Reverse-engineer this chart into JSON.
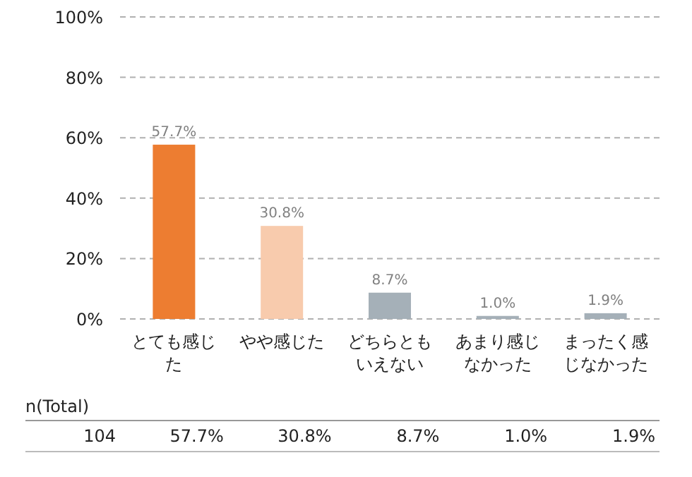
{
  "chart_data": {
    "type": "bar",
    "categories": [
      "とても感じた",
      "やや感じた",
      "どちらともいえない",
      "あまり感じなかった",
      "まったく感じなかった"
    ],
    "values": [
      57.7,
      30.8,
      8.7,
      1.0,
      1.9
    ],
    "colors": [
      "#ed7d31",
      "#f8cbad",
      "#a5b0b8",
      "#a5b0b8",
      "#a5b0b8"
    ],
    "value_labels": [
      "57.7%",
      "30.8%",
      "8.7%",
      "1.0%",
      "1.9%"
    ],
    "ylim": [
      0,
      100
    ],
    "yticks": [
      {
        "value": 0,
        "label": "0%"
      },
      {
        "value": 20,
        "label": "20%"
      },
      {
        "value": 40,
        "label": "40%"
      },
      {
        "value": 60,
        "label": "60%"
      },
      {
        "value": 80,
        "label": "80%"
      },
      {
        "value": 100,
        "label": "100%"
      }
    ],
    "grid": "y",
    "annotations": [
      "n(Total)",
      "104"
    ]
  }
}
